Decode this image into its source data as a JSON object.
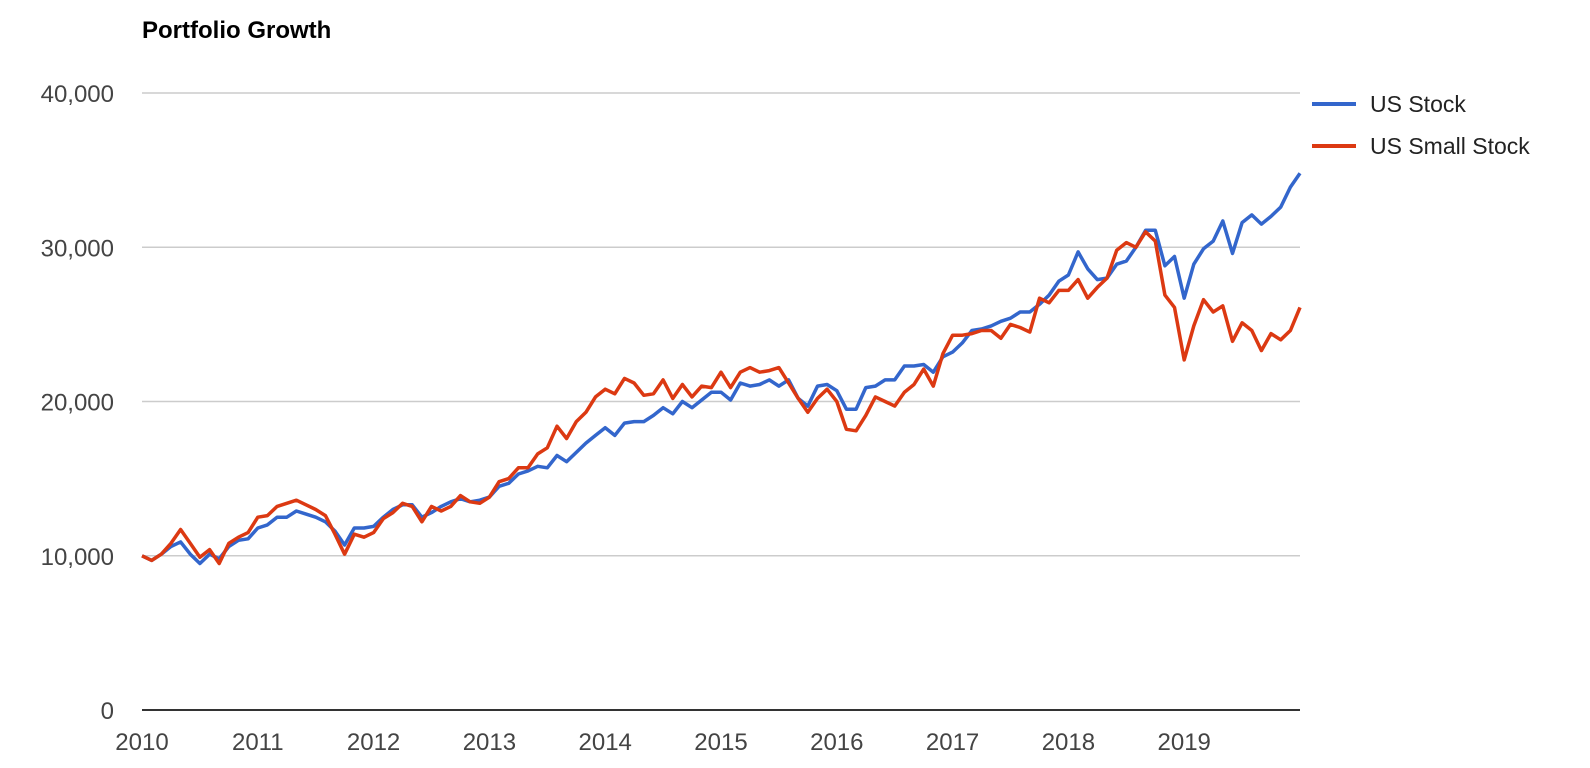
{
  "chart_data": {
    "type": "line",
    "title": "Portfolio Growth",
    "xlabel": "",
    "ylabel": "",
    "x_start": "2010-01",
    "x_end": "2019-12",
    "x_ticks": [
      "2010",
      "2011",
      "2012",
      "2013",
      "2014",
      "2015",
      "2016",
      "2017",
      "2018",
      "2019"
    ],
    "y_ticks": [
      "0",
      "10,000",
      "20,000",
      "30,000",
      "40,000"
    ],
    "ylim": [
      0,
      40000
    ],
    "grid": true,
    "legend_position": "right",
    "series": [
      {
        "name": "US Stock",
        "color": "#3366cc",
        "values": [
          10000,
          9700,
          10100,
          10600,
          10900,
          10100,
          9500,
          10100,
          9800,
          10600,
          11000,
          11100,
          11800,
          12000,
          12500,
          12500,
          12900,
          12700,
          12500,
          12200,
          11600,
          10700,
          11800,
          11800,
          11900,
          12500,
          13000,
          13300,
          13300,
          12500,
          12800,
          13200,
          13500,
          13700,
          13500,
          13600,
          13800,
          14500,
          14700,
          15300,
          15500,
          15800,
          15700,
          16500,
          16100,
          16700,
          17300,
          17800,
          18300,
          17800,
          18600,
          18700,
          18700,
          19100,
          19600,
          19200,
          20000,
          19600,
          20100,
          20600,
          20600,
          20100,
          21200,
          21000,
          21100,
          21400,
          21000,
          21400,
          20200,
          19700,
          21000,
          21100,
          20700,
          19500,
          19500,
          20900,
          21000,
          21400,
          21400,
          22300,
          22300,
          22400,
          21900,
          22900,
          23200,
          23800,
          24600,
          24700,
          24900,
          25200,
          25400,
          25800,
          25800,
          26300,
          26900,
          27800,
          28200,
          29700,
          28600,
          27900,
          28000,
          28900,
          29100,
          30000,
          31100,
          31100,
          28800,
          29400,
          26700,
          28900,
          29900,
          30400,
          31700,
          29600,
          31600,
          32100,
          31500,
          32000,
          32600,
          33900,
          34800
        ]
      },
      {
        "name": "US Small Stock",
        "color": "#dc3912",
        "values": [
          10000,
          9700,
          10100,
          10800,
          11700,
          10800,
          9900,
          10400,
          9500,
          10800,
          11200,
          11500,
          12500,
          12600,
          13200,
          13400,
          13600,
          13300,
          13000,
          12600,
          11400,
          10100,
          11400,
          11200,
          11500,
          12400,
          12800,
          13400,
          13200,
          12200,
          13200,
          12900,
          13200,
          13900,
          13500,
          13400,
          13800,
          14800,
          15000,
          15700,
          15700,
          16600,
          17000,
          18400,
          17600,
          18700,
          19300,
          20300,
          20800,
          20500,
          21500,
          21200,
          20400,
          20500,
          21400,
          20200,
          21100,
          20300,
          21000,
          20900,
          21900,
          20900,
          21900,
          22200,
          21900,
          22000,
          22200,
          21200,
          20200,
          19300,
          20200,
          20800,
          20000,
          18200,
          18100,
          19100,
          20300,
          20000,
          19700,
          20600,
          21100,
          22100,
          21000,
          23100,
          24300,
          24300,
          24400,
          24600,
          24600,
          24100,
          25000,
          24800,
          24500,
          26700,
          26400,
          27200,
          27200,
          27900,
          26700,
          27400,
          28000,
          29800,
          30300,
          30000,
          31000,
          30400,
          26900,
          26100,
          22700,
          24900,
          26600,
          25800,
          26200,
          23900,
          25100,
          24600,
          23300,
          24400,
          24000,
          24600,
          26100
        ]
      }
    ]
  }
}
